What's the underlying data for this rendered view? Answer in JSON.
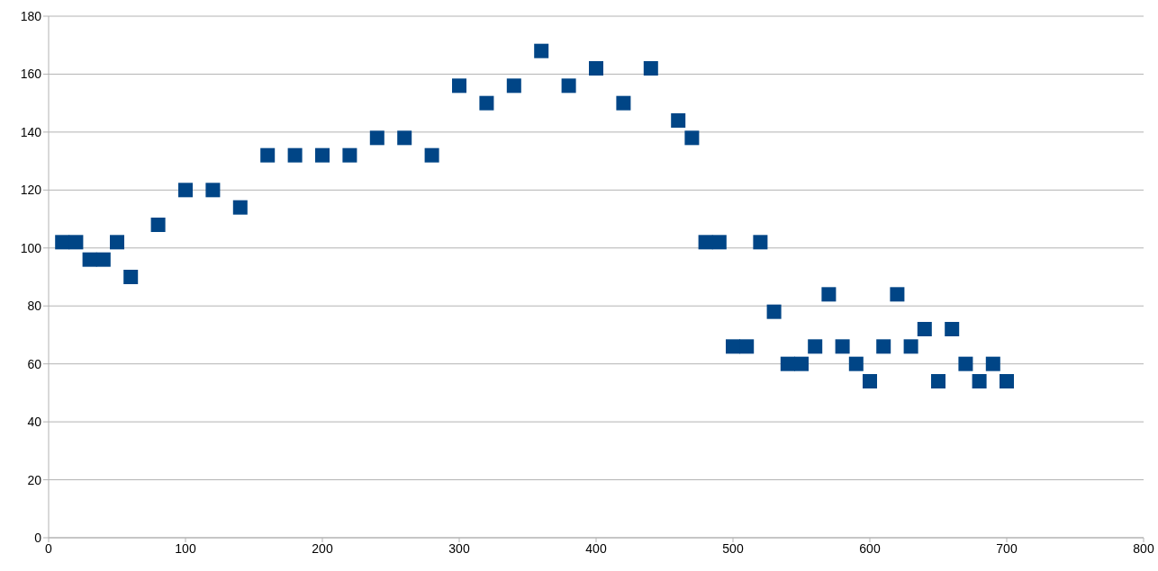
{
  "chart_data": {
    "type": "scatter",
    "x": [
      10,
      20,
      30,
      40,
      50,
      60,
      80,
      100,
      120,
      140,
      160,
      180,
      200,
      220,
      240,
      260,
      280,
      300,
      320,
      340,
      360,
      380,
      400,
      420,
      440,
      460,
      470,
      480,
      490,
      500,
      510,
      520,
      530,
      540,
      550,
      560,
      570,
      580,
      590,
      600,
      610,
      620,
      630,
      640,
      650,
      660,
      670,
      680,
      690,
      700
    ],
    "values": [
      102,
      102,
      96,
      96,
      102,
      90,
      108,
      120,
      120,
      114,
      132,
      132,
      132,
      132,
      138,
      138,
      132,
      156,
      150,
      156,
      168,
      156,
      162,
      150,
      162,
      144,
      138,
      102,
      102,
      66,
      66,
      102,
      78,
      60,
      60,
      66,
      84,
      66,
      60,
      54,
      66,
      84,
      66,
      72,
      54,
      72,
      60,
      54,
      60,
      54
    ],
    "color": "#004586",
    "marker": "square",
    "grid": "y",
    "xlim": [
      0,
      800
    ],
    "xticks": [
      0,
      100,
      200,
      300,
      400,
      500,
      600,
      700,
      800
    ],
    "ylim": [
      0,
      180
    ],
    "yticks": [
      0,
      20,
      40,
      60,
      80,
      100,
      120,
      140,
      160,
      180
    ]
  }
}
